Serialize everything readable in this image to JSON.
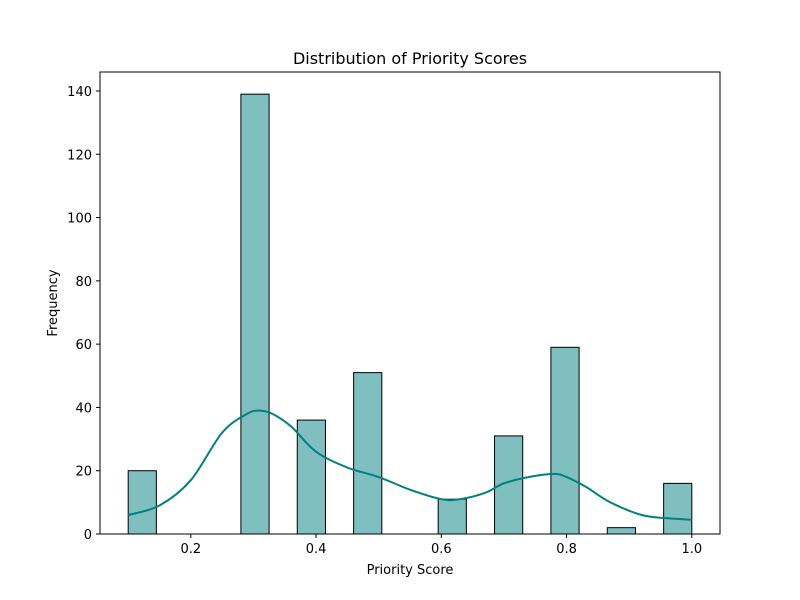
{
  "chart_data": {
    "type": "bar",
    "title": "Distribution of Priority Scores",
    "xlabel": "Priority Score",
    "ylabel": "Frequency",
    "xlim": [
      0.055,
      1.045
    ],
    "ylim": [
      0,
      146
    ],
    "xticks": [
      0.2,
      0.4,
      0.6,
      0.8,
      1.0
    ],
    "yticks": [
      0,
      20,
      40,
      60,
      80,
      100,
      120,
      140
    ],
    "bin_width": 0.045,
    "bins": [
      {
        "start": 0.1,
        "value": 20
      },
      {
        "start": 0.145,
        "value": 0
      },
      {
        "start": 0.19,
        "value": 0
      },
      {
        "start": 0.235,
        "value": 0
      },
      {
        "start": 0.28,
        "value": 139
      },
      {
        "start": 0.325,
        "value": 0
      },
      {
        "start": 0.37,
        "value": 36
      },
      {
        "start": 0.415,
        "value": 0
      },
      {
        "start": 0.46,
        "value": 51
      },
      {
        "start": 0.505,
        "value": 0
      },
      {
        "start": 0.55,
        "value": 0
      },
      {
        "start": 0.595,
        "value": 11
      },
      {
        "start": 0.64,
        "value": 0
      },
      {
        "start": 0.685,
        "value": 31
      },
      {
        "start": 0.73,
        "value": 0
      },
      {
        "start": 0.775,
        "value": 59
      },
      {
        "start": 0.82,
        "value": 0
      },
      {
        "start": 0.865,
        "value": 2
      },
      {
        "start": 0.91,
        "value": 0
      },
      {
        "start": 0.955,
        "value": 16
      }
    ],
    "kde": {
      "x": [
        0.1,
        0.15,
        0.2,
        0.25,
        0.29,
        0.31,
        0.33,
        0.36,
        0.4,
        0.45,
        0.5,
        0.55,
        0.6,
        0.63,
        0.67,
        0.7,
        0.74,
        0.78,
        0.8,
        0.83,
        0.87,
        0.92,
        0.96,
        1.0
      ],
      "y": [
        6,
        9,
        17,
        32,
        38,
        39,
        38,
        34,
        26,
        21,
        18,
        14,
        11,
        11,
        13,
        16,
        18,
        19,
        18,
        15,
        10,
        6,
        5,
        4.5
      ]
    },
    "grid": false,
    "bar_color": "#80bfbf",
    "bar_edge_color": "#000000",
    "kde_color": "#008080"
  }
}
